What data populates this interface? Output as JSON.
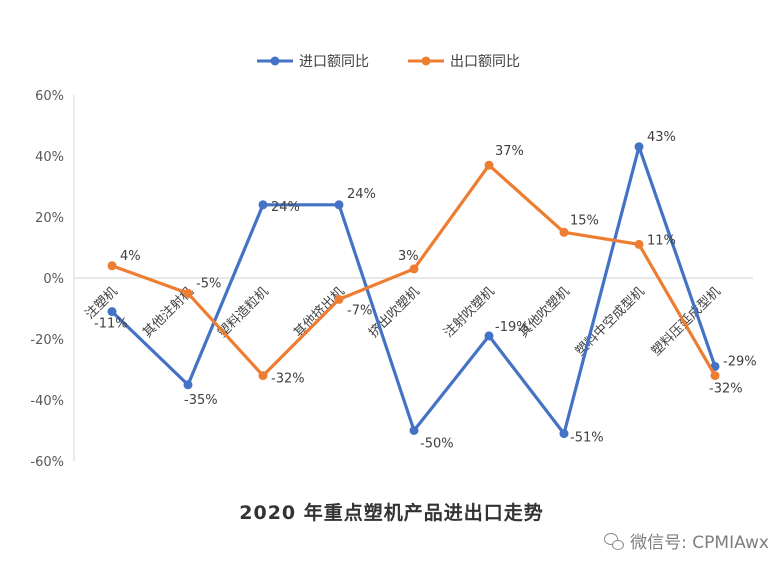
{
  "chart_data": {
    "type": "line",
    "title": "2020 年重点塑机产品进出口走势",
    "categories": [
      "注塑机",
      "其他注射机",
      "塑料造粒机",
      "其他挤出机",
      "挤出吹塑机",
      "注射吹塑机",
      "其他吹塑机",
      "塑料中空成型机",
      "塑料压延成型机"
    ],
    "series": [
      {
        "name": "进口额同比",
        "color": "#4472C4",
        "values": [
          -11,
          -35,
          24,
          24,
          -50,
          -19,
          -51,
          43,
          -29
        ],
        "labels": [
          "-11%",
          "-35%",
          "24%",
          "24%",
          "-50%",
          "-19%",
          "-51%",
          "43%",
          "-29%"
        ]
      },
      {
        "name": "出口额同比",
        "color": "#ED7D31",
        "values": [
          4,
          -5,
          -32,
          -7,
          3,
          37,
          15,
          11,
          -32
        ],
        "labels": [
          "4%",
          "-5%",
          "-32%",
          "-7%",
          "3%",
          "37%",
          "15%",
          "11%",
          "-32%"
        ]
      }
    ],
    "yticks": [
      "60%",
      "40%",
      "20%",
      "0%",
      "-20%",
      "-40%",
      "-60%"
    ],
    "ytick_values": [
      60,
      40,
      20,
      0,
      -20,
      -40,
      -60
    ],
    "ylim": [
      -60,
      60
    ],
    "grid": false,
    "legend_position": "top"
  },
  "watermark": {
    "text": "微信号: CPMIAwx",
    "icon": "wechat-icon"
  }
}
